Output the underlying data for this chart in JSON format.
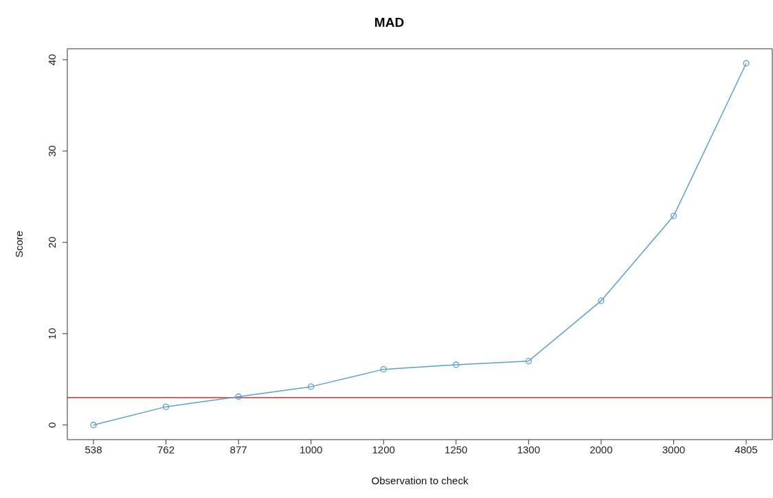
{
  "chart_data": {
    "type": "line",
    "title": "MAD",
    "xlabel": "Observation to check",
    "ylabel": "Score",
    "categories": [
      "538",
      "762",
      "877",
      "1000",
      "1200",
      "1250",
      "1300",
      "2000",
      "3000",
      "4805"
    ],
    "series": [
      {
        "color": "#56a0d8",
        "values": [
          0,
          2.0,
          3.1,
          4.2,
          6.1,
          6.6,
          7.0,
          13.6,
          22.9,
          39.6
        ]
      }
    ],
    "ylim": [
      -1.6,
      41.2
    ],
    "yticks": [
      0,
      10,
      20,
      30,
      40
    ],
    "marker": "circle",
    "line_style": "solid",
    "ref_lines": [
      {
        "axis": "y",
        "value": 3,
        "color": "#dd0000"
      }
    ]
  }
}
